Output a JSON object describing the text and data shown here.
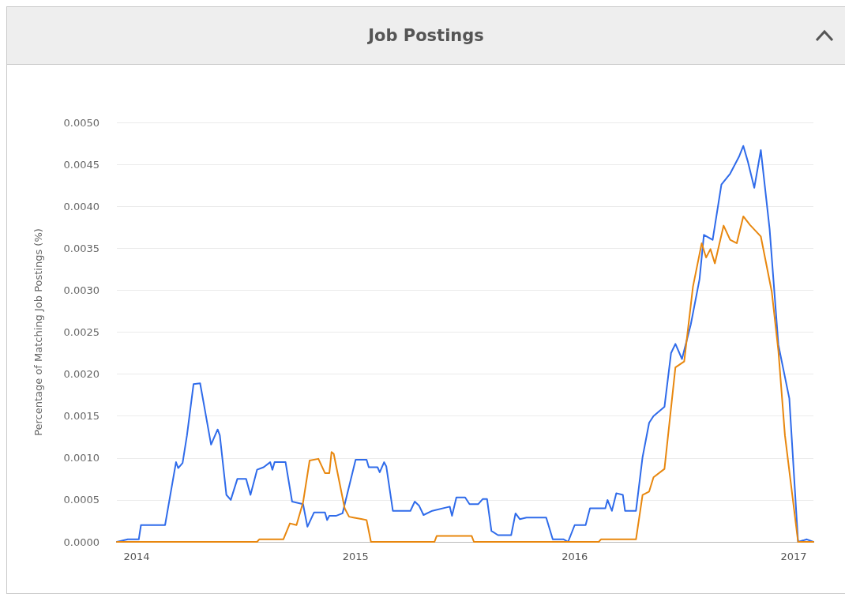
{
  "chart_data": {
    "type": "line",
    "title": "Job Postings",
    "ylabel": "Percentage of Matching Job Postings (%)",
    "xlim": [
      2013.91,
      2017.09
    ],
    "xticks": [
      2014,
      2015,
      2016,
      2017
    ],
    "ylim": [
      0,
      0.005
    ],
    "yticks": [
      {
        "value": 0,
        "label": "0.0000"
      },
      {
        "value": 0.0005,
        "label": "0.0005"
      },
      {
        "value": 0.001,
        "label": "0.0010"
      },
      {
        "value": 0.0015,
        "label": "0.0015"
      },
      {
        "value": 0.002,
        "label": "0.0020"
      },
      {
        "value": 0.0025,
        "label": "0.0025"
      },
      {
        "value": 0.003,
        "label": "0.0030"
      },
      {
        "value": 0.0035,
        "label": "0.0035"
      },
      {
        "value": 0.004,
        "label": "0.0040"
      },
      {
        "value": 0.0045,
        "label": "0.0045"
      },
      {
        "value": 0.005,
        "label": "0.0050"
      }
    ],
    "grid": "y",
    "marker": "none",
    "line_style": "solid",
    "series": [
      {
        "color": "#2f6bea",
        "x": [
          2013.91,
          2013.96,
          2014.01,
          2014.02,
          2014.13,
          2014.15,
          2014.18,
          2014.19,
          2014.21,
          2014.23,
          2014.26,
          2014.29,
          2014.31,
          2014.34,
          2014.37,
          2014.38,
          2014.41,
          2014.43,
          2014.46,
          2014.5,
          2014.52,
          2014.55,
          2014.58,
          2014.61,
          2014.62,
          2014.63,
          2014.68,
          2014.71,
          2014.76,
          2014.78,
          2014.81,
          2014.86,
          2014.87,
          2014.88,
          2014.91,
          2014.94,
          2015.0,
          2015.05,
          2015.06,
          2015.1,
          2015.11,
          2015.13,
          2015.14,
          2015.17,
          2015.25,
          2015.27,
          2015.29,
          2015.31,
          2015.35,
          2015.43,
          2015.44,
          2015.46,
          2015.5,
          2015.52,
          2015.56,
          2015.58,
          2015.6,
          2015.62,
          2015.65,
          2015.71,
          2015.73,
          2015.75,
          2015.78,
          2015.87,
          2015.9,
          2015.95,
          2015.97,
          2016.0,
          2016.05,
          2016.07,
          2016.11,
          2016.14,
          2016.15,
          2016.17,
          2016.19,
          2016.22,
          2016.23,
          2016.28,
          2016.31,
          2016.34,
          2016.36,
          2016.41,
          2016.44,
          2016.46,
          2016.49,
          2016.53,
          2016.57,
          2016.59,
          2016.63,
          2016.67,
          2016.71,
          2016.75,
          2016.77,
          2016.79,
          2016.82,
          2016.85,
          2016.89,
          2016.93,
          2016.98,
          2017.02,
          2017.06,
          2017.09
        ],
        "values": [
          0,
          3e-05,
          3e-05,
          0.0002,
          0.0002,
          0.0005,
          0.00095,
          0.00088,
          0.00094,
          0.00127,
          0.00188,
          0.00189,
          0.0016,
          0.00116,
          0.00134,
          0.00127,
          0.00056,
          0.0005,
          0.00075,
          0.00075,
          0.00056,
          0.00086,
          0.00089,
          0.00095,
          0.00086,
          0.00095,
          0.00095,
          0.00048,
          0.00045,
          0.00018,
          0.00035,
          0.00035,
          0.00026,
          0.00031,
          0.00031,
          0.00034,
          0.00098,
          0.00098,
          0.00089,
          0.00089,
          0.00083,
          0.00095,
          0.0009,
          0.00037,
          0.00037,
          0.00048,
          0.00043,
          0.00032,
          0.00037,
          0.00042,
          0.00031,
          0.00053,
          0.00053,
          0.00045,
          0.00045,
          0.00051,
          0.00051,
          0.00013,
          8e-05,
          8e-05,
          0.00034,
          0.00027,
          0.00029,
          0.00029,
          3e-05,
          3e-05,
          0,
          0.0002,
          0.0002,
          0.0004,
          0.0004,
          0.0004,
          0.0005,
          0.00037,
          0.00058,
          0.00056,
          0.00037,
          0.00037,
          0.00101,
          0.00142,
          0.0015,
          0.00161,
          0.00225,
          0.00236,
          0.00218,
          0.00259,
          0.00313,
          0.00366,
          0.0036,
          0.00426,
          0.00439,
          0.00459,
          0.00472,
          0.00454,
          0.00422,
          0.00467,
          0.00373,
          0.00235,
          0.00171,
          0,
          3e-05,
          0
        ]
      },
      {
        "color": "#e8870e",
        "x": [
          2013.91,
          2014.55,
          2014.56,
          2014.67,
          2014.7,
          2014.73,
          2014.76,
          2014.79,
          2014.83,
          2014.86,
          2014.88,
          2014.89,
          2014.9,
          2014.95,
          2014.97,
          2014.99,
          2015.03,
          2015.05,
          2015.07,
          2015.36,
          2015.37,
          2015.53,
          2015.54,
          2016.11,
          2016.12,
          2016.28,
          2016.31,
          2016.34,
          2016.36,
          2016.41,
          2016.46,
          2016.5,
          2016.54,
          2016.58,
          2016.6,
          2016.62,
          2016.64,
          2016.68,
          2016.71,
          2016.74,
          2016.77,
          2016.8,
          2016.85,
          2016.9,
          2016.93,
          2016.96,
          2017.02,
          2017.09
        ],
        "values": [
          0,
          0,
          3e-05,
          3e-05,
          0.00022,
          0.0002,
          0.00047,
          0.00097,
          0.00099,
          0.00082,
          0.00082,
          0.00107,
          0.00105,
          0.0004,
          0.0003,
          0.00029,
          0.00027,
          0.00026,
          0,
          0,
          7e-05,
          7e-05,
          0,
          0,
          3e-05,
          3e-05,
          0.00056,
          0.0006,
          0.00077,
          0.00087,
          0.00208,
          0.00215,
          0.00304,
          0.00356,
          0.00339,
          0.00349,
          0.00332,
          0.00377,
          0.0036,
          0.00356,
          0.00388,
          0.00378,
          0.00364,
          0.00298,
          0.00228,
          0.00127,
          0,
          0
        ]
      }
    ]
  }
}
